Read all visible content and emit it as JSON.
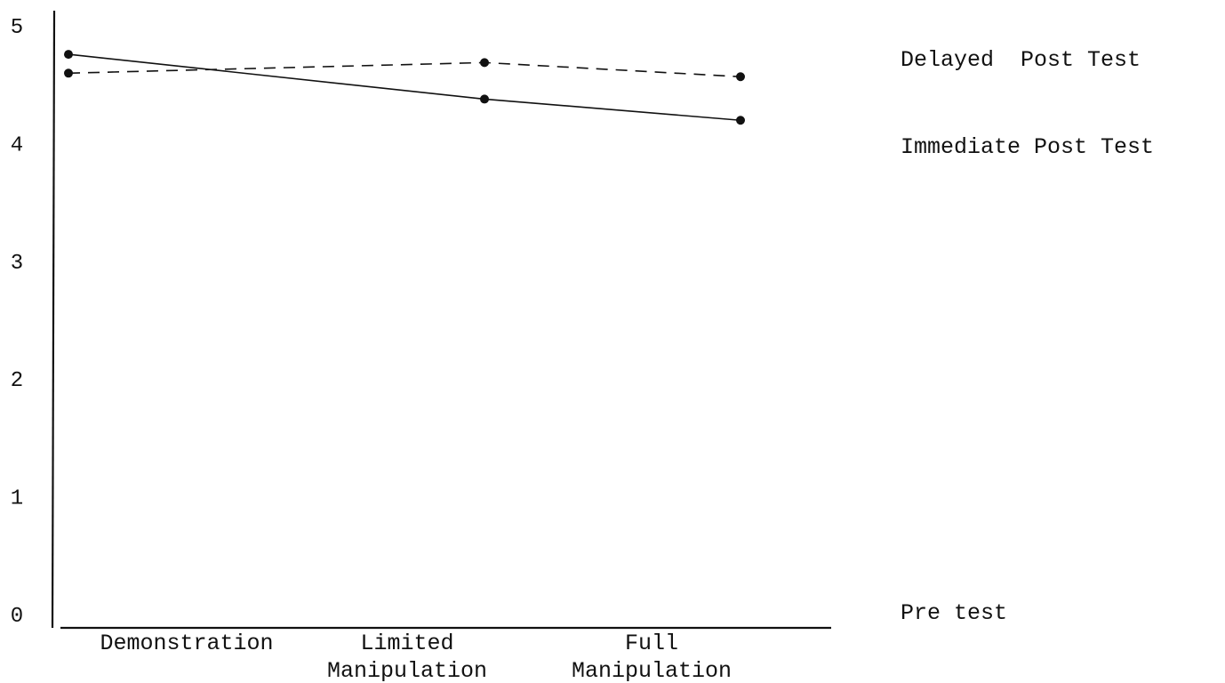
{
  "chart_data": {
    "type": "line",
    "categories": [
      "Demonstration",
      "Limited\nManipulation",
      "Full\nManipulation"
    ],
    "yticks": [
      0,
      1,
      2,
      3,
      4,
      5
    ],
    "ylim": [
      0,
      5
    ],
    "grid": false,
    "series": [
      {
        "name": "Delayed  Post Test",
        "style": "dashed",
        "values": [
          4.59,
          4.68,
          4.56
        ]
      },
      {
        "name": "Immediate Post Test",
        "style": "solid",
        "values": [
          4.75,
          4.37,
          4.19
        ]
      },
      {
        "name": "Pre test",
        "style": "none",
        "values": [
          0,
          0,
          0
        ]
      }
    ],
    "line_color": "#111111"
  }
}
